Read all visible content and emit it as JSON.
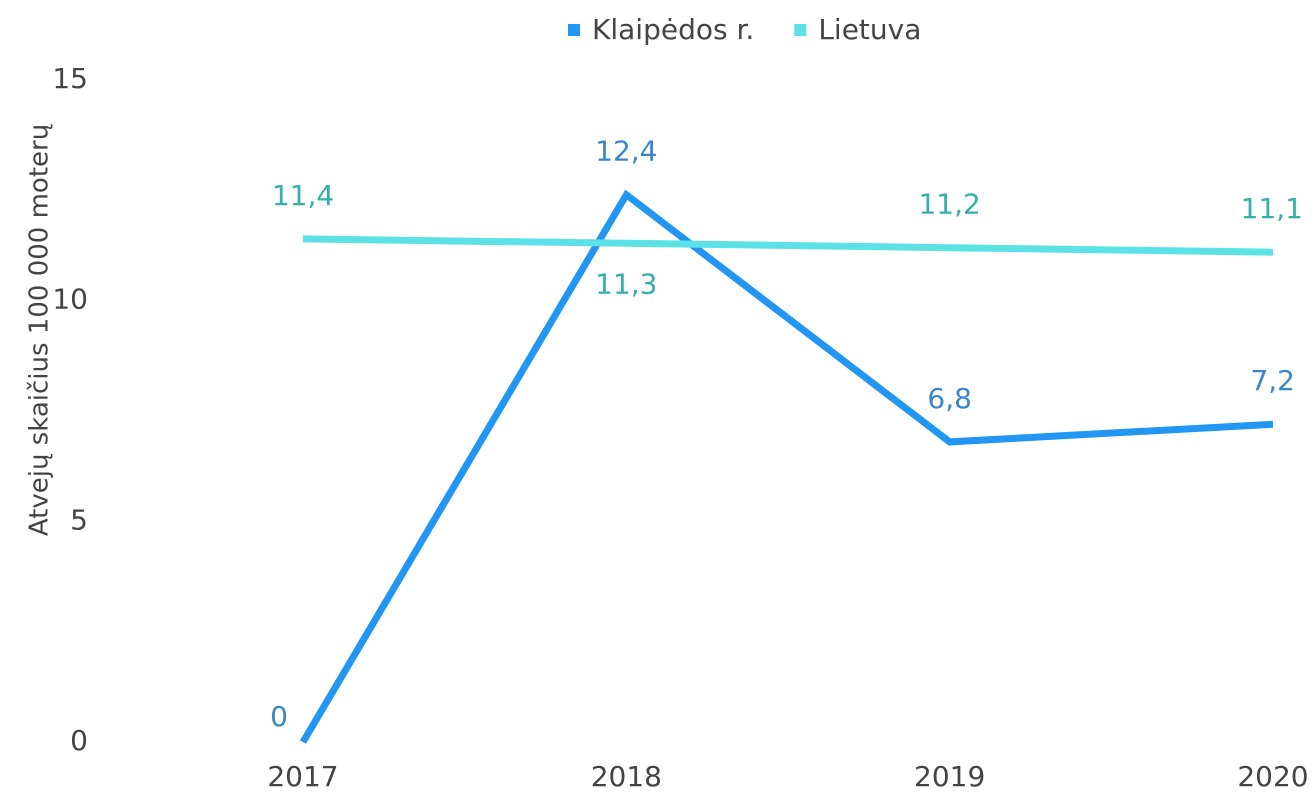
{
  "chart_data": {
    "type": "line",
    "y_label": "Atvejų skaičius 100 000 moterų",
    "categories": [
      "2017",
      "2018",
      "2019",
      "2020"
    ],
    "series": [
      {
        "name": "Klaipėdos r.",
        "color": "#2196f3",
        "values": [
          0,
          12.4,
          6.8,
          7.2
        ],
        "value_labels": [
          "0",
          "12,4",
          "6,8",
          "7,2"
        ]
      },
      {
        "name": "Lietuva",
        "color": "#5ce1e6",
        "values": [
          11.4,
          11.3,
          11.2,
          11.1
        ],
        "value_labels": [
          "11,4",
          "11,3",
          "11,2",
          "11,1"
        ]
      }
    ],
    "ylim": [
      0,
      15
    ],
    "yticks": [
      0,
      5,
      10,
      15
    ],
    "grid": false,
    "legend": "top"
  }
}
